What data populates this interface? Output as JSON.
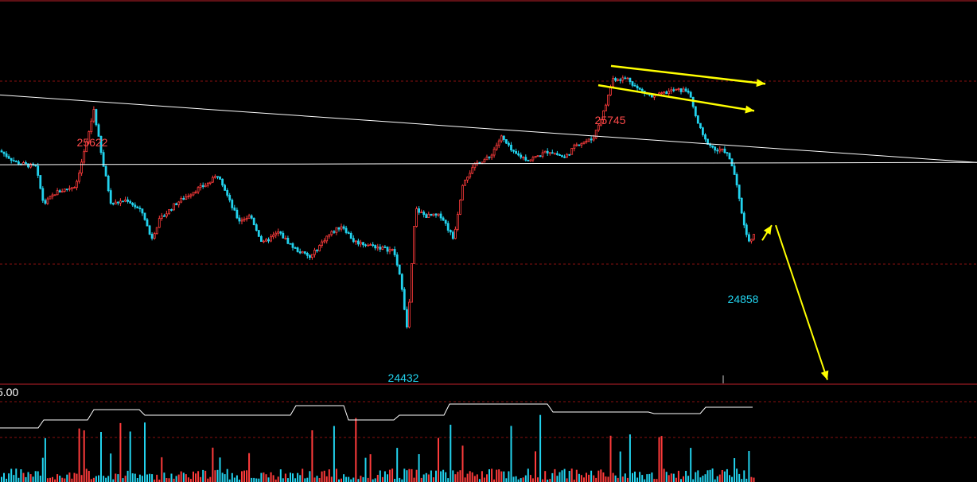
{
  "chart_data": {
    "type": "candlestick",
    "price_axis": {
      "ylim": [
        24380,
        25960
      ]
    },
    "annotations": {
      "high_left": "25622",
      "high_right": "25745",
      "low_mid": "24432",
      "low_right": "24858"
    },
    "volume_panel": {
      "axis_label": "5.00"
    },
    "trendlines": [
      {
        "name": "descending-resistance",
        "from": [
          0,
          25620
        ],
        "to": [
          1228,
          25330
        ]
      },
      {
        "name": "ascending-support",
        "from": [
          0,
          25320
        ],
        "to": [
          1228,
          25330
        ]
      }
    ],
    "arrows": [
      {
        "name": "channel-upper-arrow",
        "from": [
          768,
          25745
        ],
        "to": [
          962,
          25668
        ]
      },
      {
        "name": "channel-lower-arrow",
        "from": [
          752,
          25662
        ],
        "to": [
          948,
          25552
        ]
      },
      {
        "name": "rebound-arrow",
        "from": [
          958,
          24995
        ],
        "to": [
          970,
          25060
        ]
      },
      {
        "name": "decline-arrow",
        "from": [
          975,
          25060
        ],
        "to": [
          1040,
          24395
        ]
      }
    ]
  },
  "colors": {
    "background": "#000000",
    "grid": "#8a1010",
    "frame": "#c0202a",
    "up": "#ff3b3b",
    "down": "#22d3ee",
    "trendline": "#ffffff",
    "arrow": "#ffff00",
    "high_label": "#ff4a4a",
    "low_label": "#22d3ee",
    "axis_label": "#ffffff"
  }
}
